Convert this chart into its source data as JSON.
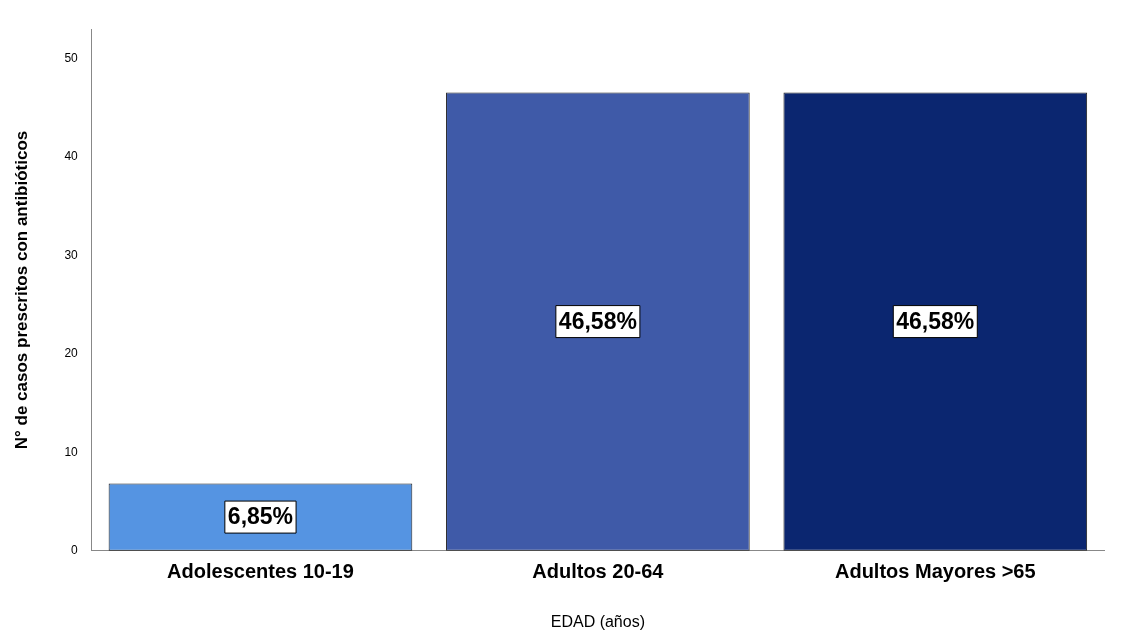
{
  "chart_data": {
    "type": "bar",
    "xlabel": "EDAD (años)",
    "ylabel": "N° de casos prescritos con antibióticos",
    "categories": [
      "Adolescentes 10-19",
      "Adultos 20-64",
      "Adultos Mayores >65"
    ],
    "values": [
      6.85,
      46.58,
      46.58
    ],
    "value_labels": [
      "6,85%",
      "46,58%",
      "46,58%"
    ],
    "colors": [
      "#5594e2",
      "#3f5aa8",
      "#0b2670"
    ],
    "ylim": [
      0,
      53
    ],
    "yticks": [
      0,
      10,
      20,
      30,
      40,
      50
    ],
    "grid": false,
    "legend": false
  }
}
